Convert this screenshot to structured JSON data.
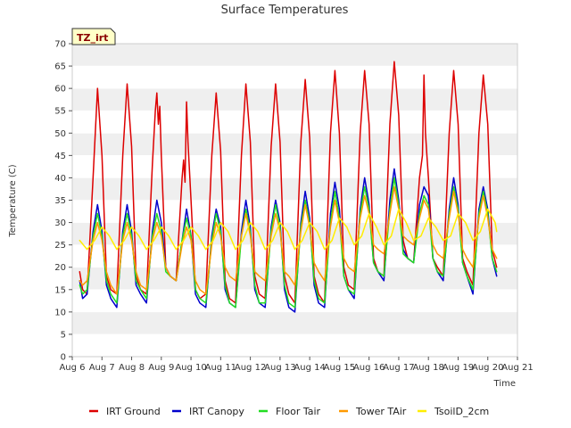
{
  "chart_data": {
    "type": "line",
    "title": "Surface Temperatures",
    "xlabel": "Time",
    "ylabel": "Temperature (C)",
    "badge": "TZ_irt",
    "ylim": [
      0,
      70
    ],
    "yticks": [
      0,
      5,
      10,
      15,
      20,
      25,
      30,
      35,
      40,
      45,
      50,
      55,
      60,
      65,
      70
    ],
    "xlim": [
      6,
      21
    ],
    "xticks": [
      {
        "value": 6,
        "label": "Aug 6"
      },
      {
        "value": 7,
        "label": "Aug 7"
      },
      {
        "value": 8,
        "label": "Aug 8"
      },
      {
        "value": 9,
        "label": "Aug 9"
      },
      {
        "value": 10,
        "label": "Aug 10"
      },
      {
        "value": 11,
        "label": "Aug 11"
      },
      {
        "value": 12,
        "label": "Aug 12"
      },
      {
        "value": 13,
        "label": "Aug 13"
      },
      {
        "value": 14,
        "label": "Aug 14"
      },
      {
        "value": 15,
        "label": "Aug 15"
      },
      {
        "value": 16,
        "label": "Aug 16"
      },
      {
        "value": 17,
        "label": "Aug 17"
      },
      {
        "value": 18,
        "label": "Aug 18"
      },
      {
        "value": 19,
        "label": "Aug 19"
      },
      {
        "value": 20,
        "label": "Aug 20"
      },
      {
        "value": 21,
        "label": "Aug 21"
      }
    ],
    "grid": "horizontal bands",
    "legend_position": "bottom",
    "series": [
      {
        "name": "IRT Ground",
        "color": "#dd0000",
        "x": [
          6.25,
          6.35,
          6.5,
          6.7,
          6.85,
          7.0,
          7.15,
          7.3,
          7.5,
          7.7,
          7.85,
          8.0,
          8.15,
          8.3,
          8.5,
          8.7,
          8.8,
          8.85,
          8.9,
          8.95,
          9.0,
          9.15,
          9.3,
          9.5,
          9.7,
          9.75,
          9.8,
          9.85,
          9.9,
          10.0,
          10.15,
          10.3,
          10.5,
          10.7,
          10.85,
          11.0,
          11.15,
          11.3,
          11.5,
          11.7,
          11.85,
          12.0,
          12.15,
          12.3,
          12.5,
          12.7,
          12.85,
          13.0,
          13.15,
          13.3,
          13.5,
          13.7,
          13.85,
          14.0,
          14.15,
          14.3,
          14.5,
          14.7,
          14.85,
          15.0,
          15.15,
          15.3,
          15.5,
          15.7,
          15.85,
          16.0,
          16.15,
          16.3,
          16.5,
          16.7,
          16.85,
          17.0,
          17.15,
          17.3,
          17.5,
          17.7,
          17.8,
          17.85,
          17.9,
          17.95,
          18.0,
          18.15,
          18.3,
          18.5,
          18.7,
          18.85,
          19.0,
          19.15,
          19.3,
          19.5,
          19.7,
          19.85,
          20.0,
          20.15,
          20.3
        ],
        "y": [
          19,
          15,
          14,
          40,
          60,
          45,
          18,
          15,
          14,
          45,
          61,
          47,
          18,
          15,
          14,
          43,
          55,
          59,
          52,
          56,
          45,
          20,
          18,
          17,
          40,
          44,
          39,
          57,
          48,
          35,
          15,
          13,
          14,
          45,
          59,
          46,
          17,
          13,
          12,
          45,
          61,
          48,
          18,
          14,
          13,
          47,
          61,
          48,
          18,
          14,
          12,
          48,
          62,
          49,
          18,
          14,
          12,
          50,
          64,
          50,
          20,
          16,
          15,
          50,
          64,
          52,
          22,
          19,
          18,
          52,
          66,
          54,
          26,
          22,
          21,
          40,
          45,
          63,
          50,
          45,
          40,
          22,
          20,
          18,
          50,
          64,
          52,
          22,
          19,
          16,
          50,
          63,
          52,
          24,
          20
        ]
      },
      {
        "name": "IRT Canopy",
        "color": "#0000cc",
        "x": [
          6.25,
          6.35,
          6.5,
          6.7,
          6.85,
          7.0,
          7.15,
          7.3,
          7.5,
          7.7,
          7.85,
          8.0,
          8.15,
          8.3,
          8.5,
          8.7,
          8.85,
          9.0,
          9.15,
          9.3,
          9.5,
          9.7,
          9.85,
          10.0,
          10.15,
          10.3,
          10.5,
          10.7,
          10.85,
          11.0,
          11.15,
          11.3,
          11.5,
          11.7,
          11.85,
          12.0,
          12.15,
          12.3,
          12.5,
          12.7,
          12.85,
          13.0,
          13.15,
          13.3,
          13.5,
          13.7,
          13.85,
          14.0,
          14.15,
          14.3,
          14.5,
          14.7,
          14.85,
          15.0,
          15.15,
          15.3,
          15.5,
          15.7,
          15.85,
          16.0,
          16.15,
          16.3,
          16.5,
          16.7,
          16.85,
          17.0,
          17.15,
          17.3,
          17.5,
          17.7,
          17.85,
          18.0,
          18.15,
          18.3,
          18.5,
          18.7,
          18.85,
          19.0,
          19.15,
          19.3,
          19.5,
          19.7,
          19.85,
          20.0,
          20.15,
          20.3
        ],
        "y": [
          17,
          13,
          14,
          28,
          34,
          28,
          16,
          13,
          11,
          28,
          34,
          28,
          16,
          14,
          12,
          28,
          35,
          30,
          20,
          18,
          17,
          26,
          33,
          27,
          14,
          12,
          11,
          27,
          33,
          29,
          15,
          12,
          11,
          28,
          35,
          29,
          15,
          12,
          11,
          29,
          35,
          30,
          15,
          11,
          10,
          30,
          37,
          31,
          16,
          12,
          11,
          32,
          39,
          33,
          18,
          15,
          13,
          33,
          40,
          34,
          21,
          19,
          17,
          35,
          42,
          35,
          24,
          22,
          21,
          34,
          38,
          36,
          22,
          19,
          17,
          33,
          40,
          34,
          21,
          18,
          14,
          33,
          38,
          33,
          22,
          18
        ]
      },
      {
        "name": "Floor Tair",
        "color": "#22dd22",
        "x": [
          6.25,
          6.35,
          6.5,
          6.7,
          6.85,
          7.0,
          7.15,
          7.3,
          7.5,
          7.7,
          7.85,
          8.0,
          8.15,
          8.3,
          8.5,
          8.7,
          8.85,
          9.0,
          9.15,
          9.3,
          9.5,
          9.7,
          9.85,
          10.0,
          10.15,
          10.3,
          10.5,
          10.7,
          10.85,
          11.0,
          11.15,
          11.3,
          11.5,
          11.7,
          11.85,
          12.0,
          12.15,
          12.3,
          12.5,
          12.7,
          12.85,
          13.0,
          13.15,
          13.3,
          13.5,
          13.7,
          13.85,
          14.0,
          14.15,
          14.3,
          14.5,
          14.7,
          14.85,
          15.0,
          15.15,
          15.3,
          15.5,
          15.7,
          15.85,
          16.0,
          16.15,
          16.3,
          16.5,
          16.7,
          16.85,
          17.0,
          17.15,
          17.3,
          17.5,
          17.7,
          17.85,
          18.0,
          18.15,
          18.3,
          18.5,
          18.7,
          18.85,
          19.0,
          19.15,
          19.3,
          19.5,
          19.7,
          19.85,
          20.0,
          20.15,
          20.3
        ],
        "y": [
          16,
          14,
          15,
          27,
          32,
          27,
          17,
          14,
          12,
          27,
          32,
          27,
          17,
          15,
          13,
          27,
          32,
          28,
          19,
          18,
          17,
          26,
          31,
          27,
          15,
          13,
          12,
          26,
          32,
          28,
          16,
          12,
          11,
          27,
          33,
          28,
          16,
          12,
          12,
          28,
          34,
          29,
          16,
          12,
          11,
          29,
          35,
          30,
          17,
          13,
          12,
          30,
          37,
          31,
          18,
          15,
          14,
          32,
          38,
          33,
          21,
          19,
          18,
          33,
          40,
          34,
          23,
          22,
          21,
          32,
          36,
          34,
          22,
          19,
          18,
          32,
          38,
          33,
          21,
          18,
          15,
          32,
          37,
          32,
          22,
          19
        ]
      },
      {
        "name": "Tower TAir",
        "color": "#ff9900",
        "x": [
          6.25,
          6.35,
          6.5,
          6.7,
          6.85,
          7.0,
          7.15,
          7.3,
          7.5,
          7.7,
          7.85,
          8.0,
          8.15,
          8.3,
          8.5,
          8.7,
          8.85,
          9.0,
          9.15,
          9.3,
          9.5,
          9.7,
          9.85,
          10.0,
          10.15,
          10.3,
          10.5,
          10.7,
          10.85,
          11.0,
          11.15,
          11.3,
          11.5,
          11.7,
          11.85,
          12.0,
          12.15,
          12.3,
          12.5,
          12.7,
          12.85,
          13.0,
          13.15,
          13.3,
          13.5,
          13.7,
          13.85,
          14.0,
          14.15,
          14.3,
          14.5,
          14.7,
          14.85,
          15.0,
          15.15,
          15.3,
          15.5,
          15.7,
          15.85,
          16.0,
          16.15,
          16.3,
          16.5,
          16.7,
          16.85,
          17.0,
          17.15,
          17.3,
          17.5,
          17.7,
          17.85,
          18.0,
          18.15,
          18.3,
          18.5,
          18.7,
          18.85,
          19.0,
          19.15,
          19.3,
          19.5,
          19.7,
          19.85,
          20.0,
          20.15,
          20.3
        ],
        "y": [
          17,
          16,
          17,
          26,
          30,
          26,
          19,
          16,
          14,
          26,
          30,
          26,
          19,
          16,
          15,
          26,
          30,
          27,
          20,
          18,
          17,
          25,
          29,
          26,
          17,
          15,
          14,
          25,
          30,
          27,
          20,
          18,
          17,
          27,
          32,
          27,
          19,
          18,
          17,
          27,
          32,
          28,
          19,
          18,
          16,
          28,
          34,
          29,
          21,
          19,
          17,
          29,
          35,
          30,
          22,
          20,
          19,
          31,
          36,
          32,
          25,
          24,
          23,
          32,
          38,
          33,
          27,
          26,
          25,
          31,
          35,
          33,
          25,
          23,
          22,
          31,
          37,
          32,
          24,
          22,
          20,
          31,
          36,
          31,
          24,
          22
        ]
      },
      {
        "name": "TsoilD_2cm",
        "color": "#ffee00",
        "x": [
          6.25,
          6.5,
          6.75,
          7.0,
          7.25,
          7.5,
          7.75,
          8.0,
          8.25,
          8.5,
          8.75,
          9.0,
          9.25,
          9.5,
          9.75,
          10.0,
          10.25,
          10.5,
          10.75,
          11.0,
          11.25,
          11.5,
          11.75,
          12.0,
          12.25,
          12.5,
          12.75,
          13.0,
          13.25,
          13.5,
          13.75,
          14.0,
          14.25,
          14.5,
          14.75,
          15.0,
          15.25,
          15.5,
          15.75,
          16.0,
          16.25,
          16.5,
          16.75,
          17.0,
          17.25,
          17.5,
          17.75,
          18.0,
          18.25,
          18.5,
          18.75,
          19.0,
          19.25,
          19.5,
          19.75,
          20.0,
          20.25,
          20.3
        ],
        "y": [
          26,
          24,
          26,
          29,
          27,
          24,
          26,
          29,
          27,
          24,
          26,
          29,
          27,
          24,
          26,
          29,
          27,
          24,
          26,
          30,
          28,
          24,
          26,
          30,
          28,
          24,
          26,
          30,
          28,
          24,
          26,
          30,
          28,
          24,
          26,
          31,
          29,
          25,
          27,
          32,
          29,
          25,
          27,
          33,
          30,
          26,
          27,
          31,
          29,
          26,
          27,
          32,
          30,
          26,
          28,
          33,
          30,
          28
        ]
      }
    ]
  }
}
